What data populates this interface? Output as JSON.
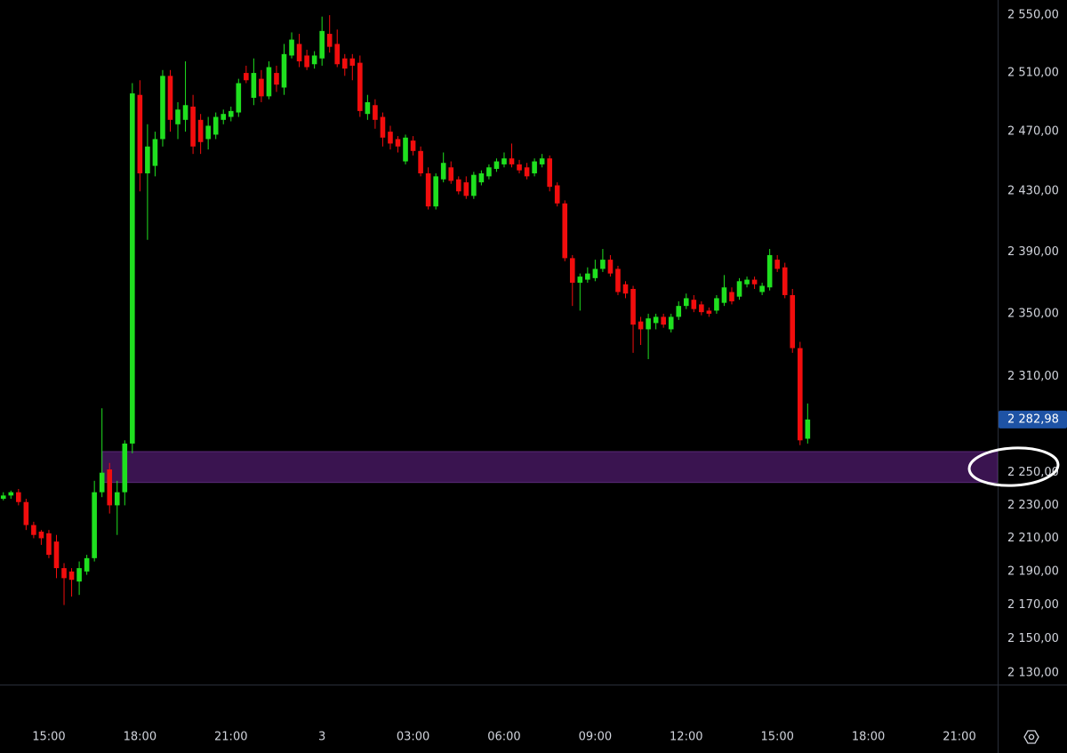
{
  "chart_data": {
    "type": "candlestick",
    "log_scale": true,
    "grid": false,
    "up_color": "#1fe01f",
    "down_color": "#f20d0d",
    "ylim": [
      2123.3,
      2560.6
    ],
    "yticks": [
      {
        "value": 2550,
        "label": "2 550,00"
      },
      {
        "value": 2510,
        "label": "2 510,00"
      },
      {
        "value": 2470,
        "label": "2 470,00"
      },
      {
        "value": 2430,
        "label": "2 430,00"
      },
      {
        "value": 2390,
        "label": "2 390,00"
      },
      {
        "value": 2350,
        "label": "2 350,00"
      },
      {
        "value": 2310,
        "label": "2 310,00"
      },
      {
        "value": 2250,
        "label": "2 250,00"
      },
      {
        "value": 2230,
        "label": "2 230,00"
      },
      {
        "value": 2210,
        "label": "2 210,00"
      },
      {
        "value": 2190,
        "label": "2 190,00"
      },
      {
        "value": 2170,
        "label": "2 170,00"
      },
      {
        "value": 2150,
        "label": "2 150,00"
      },
      {
        "value": 2130,
        "label": "2 130,00"
      }
    ],
    "xlim": [
      13.39,
      46.26
    ],
    "xticks": [
      {
        "value": 15,
        "label": "15:00"
      },
      {
        "value": 18,
        "label": "18:00"
      },
      {
        "value": 21,
        "label": "21:00"
      },
      {
        "value": 24,
        "label": "3"
      },
      {
        "value": 27,
        "label": "03:00"
      },
      {
        "value": 30,
        "label": "06:00"
      },
      {
        "value": 33,
        "label": "09:00"
      },
      {
        "value": 36,
        "label": "12:00"
      },
      {
        "value": 39,
        "label": "15:00"
      },
      {
        "value": 42,
        "label": "18:00"
      },
      {
        "value": 45,
        "label": "21:00"
      }
    ],
    "last_price": {
      "value": 2282.98,
      "label": "2 282,98",
      "color": "#1e53a5"
    },
    "zones": [
      {
        "from": 2244,
        "to": 2263,
        "x_start": 16.75,
        "color": "#3a1450"
      }
    ],
    "x": [
      13.5,
      13.75,
      14,
      14.25,
      14.5,
      14.75,
      15,
      15.25,
      15.5,
      15.75,
      16,
      16.25,
      16.5,
      16.75,
      17,
      17.25,
      17.5,
      17.75,
      18,
      18.25,
      18.5,
      18.75,
      19,
      19.25,
      19.5,
      19.75,
      20,
      20.25,
      20.5,
      20.75,
      21,
      21.25,
      21.5,
      21.75,
      22,
      22.25,
      22.5,
      22.75,
      23,
      23.25,
      23.5,
      23.75,
      24,
      24.25,
      24.5,
      24.75,
      25,
      25.25,
      25.5,
      25.75,
      26,
      26.25,
      26.5,
      26.75,
      27,
      27.25,
      27.5,
      27.75,
      28,
      28.25,
      28.5,
      28.75,
      29,
      29.25,
      29.5,
      29.75,
      30,
      30.25,
      30.5,
      30.75,
      31,
      31.25,
      31.5,
      31.75,
      32,
      32.25,
      32.5,
      32.75,
      33,
      33.25,
      33.5,
      33.75,
      34,
      34.25,
      34.5,
      34.75,
      35,
      35.25,
      35.5,
      35.75,
      36,
      36.25,
      36.5,
      36.75,
      37,
      37.25,
      37.5,
      37.75,
      38,
      38.25,
      38.5,
      38.75,
      39,
      39.25,
      39.5,
      39.75,
      40
    ],
    "open": [
      2234,
      2236,
      2238,
      2232,
      2218,
      2214,
      2213,
      2208,
      2192,
      2190,
      2184,
      2190,
      2198,
      2238,
      2252,
      2230,
      2238,
      2268,
      2495,
      2442,
      2447,
      2465,
      2508,
      2475,
      2478,
      2487,
      2478,
      2465,
      2468,
      2478,
      2480,
      2483,
      2510,
      2493,
      2506,
      2494,
      2510,
      2500,
      2522,
      2530,
      2522,
      2516,
      2520,
      2537,
      2530,
      2520,
      2520,
      2517,
      2482,
      2488,
      2480,
      2470,
      2465,
      2450,
      2464,
      2457,
      2442,
      2420,
      2438,
      2446,
      2438,
      2436,
      2427,
      2436,
      2440,
      2445,
      2448,
      2452,
      2448,
      2446,
      2442,
      2448,
      2452,
      2434,
      2422,
      2386,
      2370,
      2372,
      2373,
      2379,
      2385,
      2379,
      2369,
      2366,
      2345,
      2340,
      2344,
      2348,
      2340,
      2348,
      2355,
      2359,
      2356,
      2352,
      2352,
      2357,
      2364,
      2361,
      2369,
      2372,
      2364,
      2367,
      2385,
      2380,
      2362,
      2328,
      2271
    ],
    "high": [
      2238,
      2239,
      2240,
      2234,
      2220,
      2215,
      2215,
      2212,
      2195,
      2192,
      2196,
      2200,
      2245,
      2290,
      2256,
      2245,
      2270,
      2503,
      2505,
      2475,
      2470,
      2512,
      2512,
      2490,
      2518,
      2495,
      2482,
      2480,
      2483,
      2485,
      2487,
      2506,
      2515,
      2520,
      2512,
      2518,
      2515,
      2530,
      2538,
      2537,
      2526,
      2525,
      2549,
      2550,
      2540,
      2523,
      2523,
      2522,
      2495,
      2492,
      2483,
      2474,
      2467,
      2468,
      2467,
      2460,
      2446,
      2442,
      2456,
      2450,
      2440,
      2440,
      2443,
      2444,
      2448,
      2452,
      2456,
      2462,
      2451,
      2449,
      2452,
      2455,
      2454,
      2436,
      2424,
      2388,
      2376,
      2380,
      2385,
      2392,
      2388,
      2381,
      2371,
      2368,
      2348,
      2350,
      2350,
      2350,
      2350,
      2358,
      2363,
      2362,
      2358,
      2354,
      2362,
      2375,
      2367,
      2373,
      2374,
      2374,
      2370,
      2392,
      2388,
      2383,
      2366,
      2332,
      2293
    ],
    "low": [
      2233,
      2234,
      2230,
      2215,
      2210,
      2206,
      2198,
      2186,
      2170,
      2175,
      2176,
      2188,
      2196,
      2235,
      2225,
      2212,
      2230,
      2262,
      2430,
      2398,
      2440,
      2460,
      2470,
      2465,
      2470,
      2455,
      2455,
      2458,
      2465,
      2475,
      2477,
      2480,
      2503,
      2488,
      2490,
      2492,
      2497,
      2495,
      2520,
      2514,
      2512,
      2513,
      2515,
      2524,
      2514,
      2508,
      2505,
      2480,
      2478,
      2472,
      2460,
      2458,
      2456,
      2448,
      2454,
      2440,
      2418,
      2418,
      2436,
      2435,
      2428,
      2425,
      2425,
      2434,
      2438,
      2443,
      2446,
      2446,
      2442,
      2438,
      2440,
      2446,
      2430,
      2420,
      2384,
      2355,
      2352,
      2370,
      2371,
      2377,
      2374,
      2362,
      2360,
      2325,
      2330,
      2321,
      2340,
      2341,
      2338,
      2346,
      2353,
      2351,
      2349,
      2348,
      2350,
      2355,
      2356,
      2359,
      2367,
      2366,
      2362,
      2365,
      2377,
      2360,
      2325,
      2267,
      2268
    ],
    "close": [
      2236,
      2238,
      2232,
      2218,
      2212,
      2210,
      2200,
      2192,
      2186,
      2185,
      2192,
      2198,
      2238,
      2250,
      2230,
      2238,
      2268,
      2496,
      2442,
      2460,
      2465,
      2508,
      2478,
      2485,
      2488,
      2460,
      2463,
      2474,
      2480,
      2482,
      2484,
      2503,
      2505,
      2510,
      2494,
      2514,
      2502,
      2523,
      2533,
      2518,
      2514,
      2522,
      2539,
      2528,
      2516,
      2513,
      2515,
      2484,
      2490,
      2478,
      2466,
      2462,
      2460,
      2466,
      2457,
      2442,
      2420,
      2440,
      2449,
      2437,
      2430,
      2427,
      2441,
      2442,
      2446,
      2450,
      2452,
      2448,
      2444,
      2440,
      2450,
      2452,
      2433,
      2422,
      2386,
      2370,
      2374,
      2376,
      2379,
      2385,
      2376,
      2364,
      2363,
      2343,
      2340,
      2347,
      2348,
      2343,
      2348,
      2355,
      2360,
      2353,
      2351,
      2350,
      2360,
      2367,
      2358,
      2371,
      2372,
      2369,
      2368,
      2388,
      2379,
      2362,
      2328,
      2270,
      2282.98
    ]
  }
}
